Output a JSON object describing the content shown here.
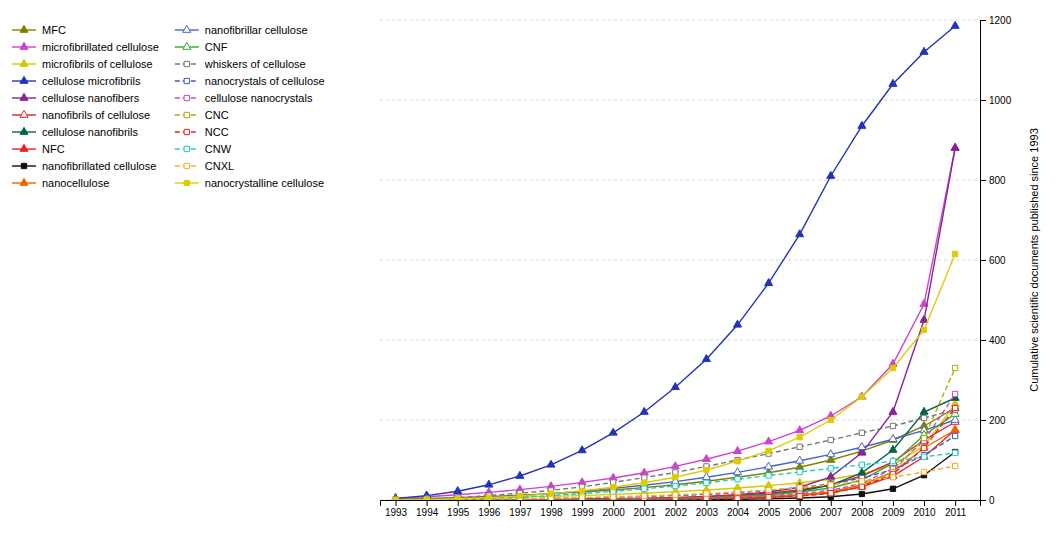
{
  "chart_data": {
    "type": "line",
    "ylabel": "Cumulative scientific documents published since 1993",
    "x": [
      1993,
      1994,
      1995,
      1996,
      1997,
      1998,
      1999,
      2000,
      2001,
      2002,
      2003,
      2004,
      2005,
      2006,
      2007,
      2008,
      2009,
      2010,
      2011
    ],
    "xlim": [
      1992.5,
      2011.8
    ],
    "xticks": [
      1993,
      1994,
      1995,
      1996,
      1997,
      1998,
      1999,
      2000,
      2001,
      2002,
      2003,
      2004,
      2005,
      2006,
      2007,
      2008,
      2009,
      2010,
      2011
    ],
    "ylim": [
      0,
      1200
    ],
    "yticks": [
      0,
      200,
      400,
      600,
      800,
      1000,
      1200
    ],
    "grid": "y",
    "legend": "upper left",
    "series": [
      {
        "name": "MFC",
        "color": "#808000",
        "line_style": "solid",
        "marker": "triangle",
        "values": [
          2,
          4,
          6,
          9,
          12,
          16,
          20,
          25,
          31,
          38,
          47,
          57,
          68,
          82,
          100,
          122,
          150,
          185,
          230
        ]
      },
      {
        "name": "microfibrillated cellulose",
        "color": "#cc44cc",
        "line_style": "solid",
        "marker": "triangle",
        "values": [
          4,
          8,
          13,
          19,
          26,
          34,
          44,
          55,
          68,
          84,
          102,
          122,
          146,
          174,
          210,
          258,
          340,
          490,
          880
        ]
      },
      {
        "name": "microfibrils of cellulose",
        "color": "#cccc00",
        "line_style": "solid",
        "marker": "triangle",
        "values": [
          1,
          2,
          3,
          5,
          7,
          9,
          11,
          14,
          17,
          21,
          25,
          30,
          36,
          43,
          52,
          65,
          88,
          135,
          240
        ]
      },
      {
        "name": "cellulose microfibrils",
        "color": "#2233bb",
        "line_style": "solid",
        "marker": "triangle",
        "values": [
          4,
          11,
          22,
          38,
          60,
          88,
          124,
          168,
          220,
          282,
          352,
          438,
          542,
          664,
          810,
          935,
          1040,
          1120,
          1185
        ]
      },
      {
        "name": "cellulose nanofibers",
        "color": "#882299",
        "line_style": "solid",
        "marker": "triangle",
        "values": [
          0,
          0,
          0,
          0,
          1,
          1,
          2,
          3,
          4,
          6,
          9,
          13,
          20,
          32,
          58,
          118,
          220,
          450,
          880
        ]
      },
      {
        "name": "nanofibrils of cellulose",
        "color": "#dd2222",
        "line_style": "solid",
        "marker": "triangle-open",
        "values": [
          0,
          0,
          0,
          0,
          1,
          1,
          2,
          3,
          4,
          6,
          8,
          12,
          17,
          25,
          38,
          60,
          95,
          150,
          195
        ]
      },
      {
        "name": "cellulose nanofibrils",
        "color": "#006644",
        "line_style": "solid",
        "marker": "triangle",
        "values": [
          0,
          0,
          0,
          0,
          0,
          1,
          1,
          2,
          3,
          4,
          6,
          9,
          14,
          22,
          37,
          68,
          125,
          220,
          255
        ]
      },
      {
        "name": "NFC",
        "color": "#ee2222",
        "line_style": "solid",
        "marker": "triangle",
        "values": [
          0,
          0,
          0,
          0,
          0,
          0,
          0,
          1,
          1,
          2,
          3,
          5,
          7,
          11,
          18,
          33,
          60,
          108,
          175
        ]
      },
      {
        "name": "nanofibrillated cellulose",
        "color": "#111111",
        "line_style": "solid",
        "marker": "square",
        "values": [
          0,
          0,
          0,
          0,
          0,
          0,
          0,
          0,
          0,
          1,
          1,
          2,
          3,
          5,
          8,
          15,
          28,
          62,
          120
        ]
      },
      {
        "name": "nanocellulose",
        "color": "#ee6600",
        "line_style": "solid",
        "marker": "triangle",
        "values": [
          0,
          0,
          0,
          0,
          0,
          0,
          1,
          1,
          2,
          3,
          4,
          6,
          9,
          13,
          20,
          38,
          70,
          130,
          175
        ]
      },
      {
        "name": "nanofibrillar cellulose",
        "color": "#4466cc",
        "line_style": "solid",
        "marker": "triangle-open",
        "values": [
          1,
          2,
          4,
          7,
          11,
          16,
          22,
          29,
          37,
          46,
          57,
          69,
          83,
          98,
          114,
          132,
          152,
          174,
          200
        ]
      },
      {
        "name": "CNF",
        "color": "#33aa33",
        "line_style": "solid",
        "marker": "triangle-open",
        "values": [
          0,
          0,
          0,
          0,
          0,
          0,
          1,
          2,
          3,
          4,
          6,
          9,
          13,
          20,
          30,
          50,
          92,
          162,
          215
        ]
      },
      {
        "name": "whiskers of cellulose",
        "color": "#777777",
        "line_style": "dashed",
        "marker": "square-open",
        "values": [
          1,
          3,
          6,
          11,
          17,
          24,
          33,
          44,
          56,
          69,
          84,
          100,
          116,
          133,
          150,
          168,
          185,
          205,
          225
        ]
      },
      {
        "name": "nanocrystals of cellulose",
        "color": "#4455bb",
        "line_style": "dashed",
        "marker": "square-open",
        "values": [
          0,
          0,
          1,
          2,
          3,
          4,
          5,
          7,
          9,
          11,
          14,
          18,
          24,
          31,
          40,
          55,
          76,
          112,
          160
        ]
      },
      {
        "name": "cellulose nanocrystals",
        "color": "#cc44cc",
        "line_style": "dashed",
        "marker": "square-open",
        "values": [
          0,
          0,
          0,
          0,
          0,
          1,
          1,
          2,
          3,
          4,
          6,
          8,
          11,
          16,
          24,
          42,
          78,
          148,
          265
        ]
      },
      {
        "name": "CNC",
        "color": "#aaaa00",
        "line_style": "dashed",
        "marker": "square-open",
        "values": [
          0,
          0,
          0,
          0,
          0,
          0,
          0,
          1,
          1,
          2,
          3,
          4,
          7,
          10,
          17,
          35,
          70,
          155,
          330
        ]
      },
      {
        "name": "NCC",
        "color": "#ee2222",
        "line_style": "dashed",
        "marker": "square-open",
        "values": [
          0,
          0,
          0,
          0,
          0,
          0,
          0,
          1,
          1,
          2,
          3,
          4,
          7,
          10,
          17,
          33,
          65,
          130,
          230
        ]
      },
      {
        "name": "CNW",
        "color": "#22cccc",
        "line_style": "dashed",
        "marker": "square-open",
        "values": [
          0,
          1,
          2,
          4,
          7,
          11,
          16,
          21,
          28,
          35,
          43,
          52,
          61,
          70,
          79,
          88,
          97,
          108,
          118
        ]
      },
      {
        "name": "CNXL",
        "color": "#ffaa22",
        "line_style": "dashed",
        "marker": "square-open",
        "values": [
          0,
          0,
          1,
          2,
          3,
          4,
          6,
          8,
          10,
          13,
          16,
          20,
          25,
          31,
          38,
          47,
          57,
          70,
          85
        ]
      },
      {
        "name": "nanocrystalline cellulose",
        "color": "#ddcc00",
        "line_style": "solid",
        "marker": "square",
        "values": [
          0,
          1,
          3,
          6,
          10,
          16,
          23,
          32,
          43,
          57,
          75,
          97,
          123,
          157,
          200,
          258,
          330,
          425,
          615
        ]
      }
    ]
  }
}
